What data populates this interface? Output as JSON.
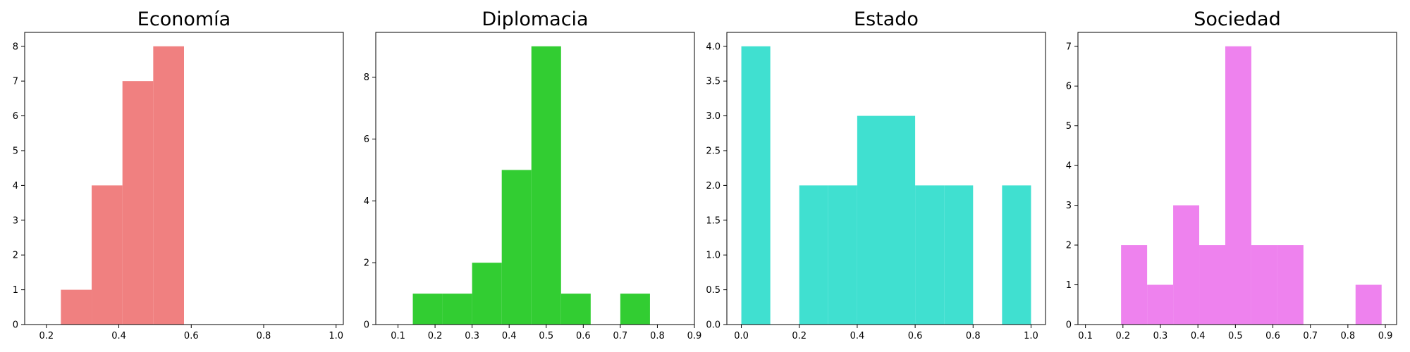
{
  "chart_data": [
    {
      "type": "histogram",
      "title": "Economía",
      "color": "#f08080",
      "xlim": [
        0.14,
        1.02
      ],
      "ylim": [
        0,
        8.4
      ],
      "xticks": [
        0.2,
        0.4,
        0.6,
        0.8,
        1.0
      ],
      "xtick_labels": [
        "0.2",
        "0.4",
        "0.6",
        "0.8",
        "1.0"
      ],
      "yticks": [
        0,
        1,
        2,
        3,
        4,
        5,
        6,
        7,
        8
      ],
      "ytick_labels": [
        "0",
        "1",
        "2",
        "3",
        "4",
        "5",
        "6",
        "7",
        "8"
      ],
      "bins": [
        {
          "x0": 0.24,
          "x1": 0.325,
          "count": 1
        },
        {
          "x0": 0.325,
          "x1": 0.41,
          "count": 4
        },
        {
          "x0": 0.41,
          "x1": 0.495,
          "count": 7
        },
        {
          "x0": 0.495,
          "x1": 0.58,
          "count": 8
        }
      ]
    },
    {
      "type": "histogram",
      "title": "Diplomacia",
      "color": "#32cd32",
      "xlim": [
        0.04,
        0.9
      ],
      "ylim": [
        0,
        9.45
      ],
      "xticks": [
        0.1,
        0.2,
        0.3,
        0.4,
        0.5,
        0.6,
        0.7,
        0.8,
        0.9
      ],
      "xtick_labels": [
        "0.1",
        "0.2",
        "0.3",
        "0.4",
        "0.5",
        "0.6",
        "0.7",
        "0.8",
        "0.9"
      ],
      "yticks": [
        0,
        2,
        4,
        6,
        8
      ],
      "ytick_labels": [
        "0",
        "2",
        "4",
        "6",
        "8"
      ],
      "bins": [
        {
          "x0": 0.14,
          "x1": 0.22,
          "count": 1
        },
        {
          "x0": 0.22,
          "x1": 0.3,
          "count": 1
        },
        {
          "x0": 0.3,
          "x1": 0.38,
          "count": 2
        },
        {
          "x0": 0.38,
          "x1": 0.46,
          "count": 5
        },
        {
          "x0": 0.46,
          "x1": 0.54,
          "count": 9
        },
        {
          "x0": 0.54,
          "x1": 0.62,
          "count": 1
        },
        {
          "x0": 0.62,
          "x1": 0.7,
          "count": 0
        },
        {
          "x0": 0.7,
          "x1": 0.78,
          "count": 1
        }
      ]
    },
    {
      "type": "histogram",
      "title": "Estado",
      "color": "#40e0d0",
      "xlim": [
        -0.05,
        1.05
      ],
      "ylim": [
        0,
        4.2
      ],
      "xticks": [
        0.0,
        0.2,
        0.4,
        0.6,
        0.8,
        1.0
      ],
      "xtick_labels": [
        "0.0",
        "0.2",
        "0.4",
        "0.6",
        "0.8",
        "1.0"
      ],
      "yticks": [
        0,
        0.5,
        1.0,
        1.5,
        2.0,
        2.5,
        3.0,
        3.5,
        4.0
      ],
      "ytick_labels": [
        "0.0",
        "0.5",
        "1.0",
        "1.5",
        "2.0",
        "2.5",
        "3.0",
        "3.5",
        "4.0"
      ],
      "bins": [
        {
          "x0": 0.0,
          "x1": 0.1,
          "count": 4
        },
        {
          "x0": 0.1,
          "x1": 0.2,
          "count": 0
        },
        {
          "x0": 0.2,
          "x1": 0.3,
          "count": 2
        },
        {
          "x0": 0.3,
          "x1": 0.4,
          "count": 2
        },
        {
          "x0": 0.4,
          "x1": 0.5,
          "count": 3
        },
        {
          "x0": 0.5,
          "x1": 0.6,
          "count": 3
        },
        {
          "x0": 0.6,
          "x1": 0.7,
          "count": 2
        },
        {
          "x0": 0.7,
          "x1": 0.8,
          "count": 2
        },
        {
          "x0": 0.8,
          "x1": 0.9,
          "count": 0
        },
        {
          "x0": 0.9,
          "x1": 1.0,
          "count": 2
        }
      ]
    },
    {
      "type": "histogram",
      "title": "Sociedad",
      "color": "#ee82ee",
      "xlim": [
        0.08,
        0.93
      ],
      "ylim": [
        0,
        7.35
      ],
      "xticks": [
        0.1,
        0.2,
        0.3,
        0.4,
        0.5,
        0.6,
        0.7,
        0.8,
        0.9
      ],
      "xtick_labels": [
        "0.1",
        "0.2",
        "0.3",
        "0.4",
        "0.5",
        "0.6",
        "0.7",
        "0.8",
        "0.9"
      ],
      "yticks": [
        0,
        1,
        2,
        3,
        4,
        5,
        6,
        7
      ],
      "ytick_labels": [
        "0",
        "1",
        "2",
        "3",
        "4",
        "5",
        "6",
        "7"
      ],
      "bins": [
        {
          "x0": 0.195,
          "x1": 0.2645,
          "count": 2
        },
        {
          "x0": 0.2645,
          "x1": 0.334,
          "count": 1
        },
        {
          "x0": 0.334,
          "x1": 0.4035,
          "count": 3
        },
        {
          "x0": 0.4035,
          "x1": 0.473,
          "count": 2
        },
        {
          "x0": 0.473,
          "x1": 0.5425,
          "count": 7
        },
        {
          "x0": 0.5425,
          "x1": 0.612,
          "count": 2
        },
        {
          "x0": 0.612,
          "x1": 0.6815,
          "count": 2
        },
        {
          "x0": 0.6815,
          "x1": 0.751,
          "count": 0
        },
        {
          "x0": 0.751,
          "x1": 0.8205,
          "count": 0
        },
        {
          "x0": 0.8205,
          "x1": 0.89,
          "count": 1
        }
      ]
    }
  ]
}
